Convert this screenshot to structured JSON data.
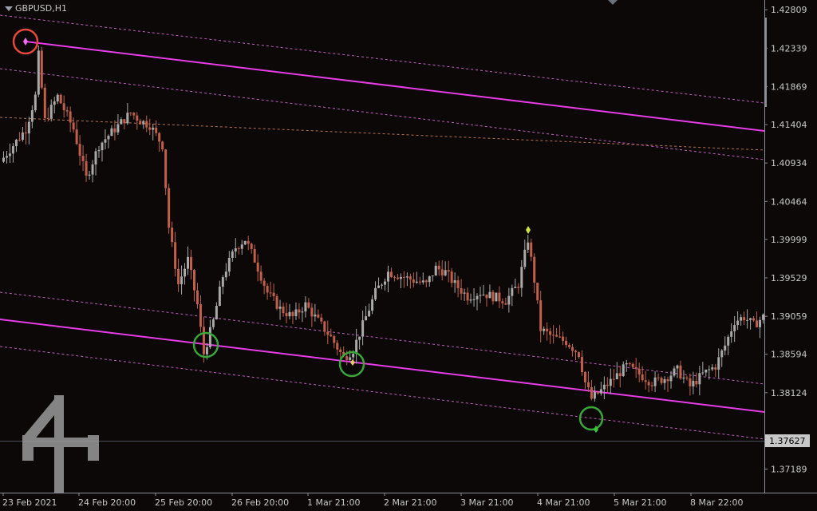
{
  "window": {
    "symbol_title": "GBPUSD,H1"
  },
  "colors": {
    "background": "#0b0807",
    "bull": "#a9a9a9",
    "bear": "#c0604a",
    "channel_main": "#e83ce8",
    "channel_dashed": "#c35dc3",
    "fib_dashed": "#b8734a",
    "circle_high": "#e8483c",
    "circle_low": "#3aa63a",
    "price_label_bg": "#c8c8c8"
  },
  "price_axis": {
    "ticks": [
      "1.42809",
      "1.42339",
      "1.41869",
      "1.41404",
      "1.40934",
      "1.40464",
      "1.39999",
      "1.39529",
      "1.39059",
      "1.38594",
      "1.38124",
      "1.37189"
    ],
    "current_price": "1.37627"
  },
  "time_axis": {
    "labels": [
      "23 Feb 2021",
      "24 Feb 20:00",
      "25 Feb 20:00",
      "26 Feb 20:00",
      "1 Mar 21:00",
      "2 Mar 21:00",
      "3 Mar 21:00",
      "4 Mar 21:00",
      "5 Mar 21:00",
      "8 Mar 22:00"
    ]
  },
  "chart_data": {
    "type": "candlestick",
    "symbol": "GBPUSD",
    "timeframe": "H1",
    "ylim": [
      1.3695,
      1.4285
    ],
    "current_price": 1.37627,
    "series": [
      {
        "name": "path",
        "values": [
          [
            0,
            1.4095
          ],
          [
            4,
            1.4115
          ],
          [
            8,
            1.4135
          ],
          [
            11,
            1.4175
          ],
          [
            12,
            1.4225
          ],
          [
            14,
            1.4145
          ],
          [
            18,
            1.4175
          ],
          [
            23,
            1.4135
          ],
          [
            27,
            1.4075
          ],
          [
            31,
            1.4115
          ],
          [
            36,
            1.4135
          ],
          [
            41,
            1.4155
          ],
          [
            44,
            1.4145
          ],
          [
            47,
            1.414
          ],
          [
            51,
            1.4115
          ],
          [
            53,
            1.4015
          ],
          [
            56,
            1.3945
          ],
          [
            59,
            1.3975
          ],
          [
            62,
            1.392
          ],
          [
            64,
            1.386
          ],
          [
            67,
            1.39
          ],
          [
            70,
            1.3955
          ],
          [
            74,
            1.399
          ],
          [
            77,
            1.4
          ],
          [
            80,
            1.3975
          ],
          [
            84,
            1.3935
          ],
          [
            88,
            1.3915
          ],
          [
            92,
            1.3905
          ],
          [
            96,
            1.392
          ],
          [
            100,
            1.39
          ],
          [
            104,
            1.388
          ],
          [
            108,
            1.3855
          ],
          [
            111,
            1.3865
          ],
          [
            114,
            1.3895
          ],
          [
            118,
            1.3935
          ],
          [
            122,
            1.396
          ],
          [
            126,
            1.3955
          ],
          [
            130,
            1.395
          ],
          [
            134,
            1.3945
          ],
          [
            137,
            1.3965
          ],
          [
            140,
            1.396
          ],
          [
            143,
            1.3945
          ],
          [
            147,
            1.393
          ],
          [
            151,
            1.3935
          ],
          [
            155,
            1.393
          ],
          [
            159,
            1.3925
          ],
          [
            163,
            1.3945
          ],
          [
            166,
            1.4
          ],
          [
            168,
            1.395
          ],
          [
            170,
            1.389
          ],
          [
            174,
            1.388
          ],
          [
            178,
            1.3875
          ],
          [
            182,
            1.386
          ],
          [
            184,
            1.3825
          ],
          [
            186,
            1.3805
          ],
          [
            189,
            1.3815
          ],
          [
            193,
            1.383
          ],
          [
            197,
            1.3845
          ],
          [
            201,
            1.3835
          ],
          [
            205,
            1.3825
          ],
          [
            209,
            1.383
          ],
          [
            213,
            1.384
          ],
          [
            217,
            1.382
          ],
          [
            221,
            1.3835
          ],
          [
            225,
            1.3845
          ],
          [
            228,
            1.387
          ],
          [
            231,
            1.39
          ],
          [
            234,
            1.3905
          ],
          [
            237,
            1.3895
          ],
          [
            240,
            1.3905
          ]
        ]
      }
    ],
    "channel": {
      "upper_main": [
        [
          32,
          1.4235
        ],
        [
          960,
          1.413
        ]
      ],
      "lower_main": [
        [
          0,
          1.3907
        ],
        [
          960,
          1.3796
        ]
      ]
    },
    "markers": [
      {
        "type": "swing-high",
        "color": "#e8483c",
        "price": 1.4235
      },
      {
        "type": "swing-low",
        "color": "#3aa63a",
        "price": 1.3877
      },
      {
        "type": "swing-low",
        "color": "#3aa63a",
        "price": 1.3855
      },
      {
        "type": "swing-low",
        "color": "#3aa63a",
        "price": 1.3795
      }
    ]
  }
}
